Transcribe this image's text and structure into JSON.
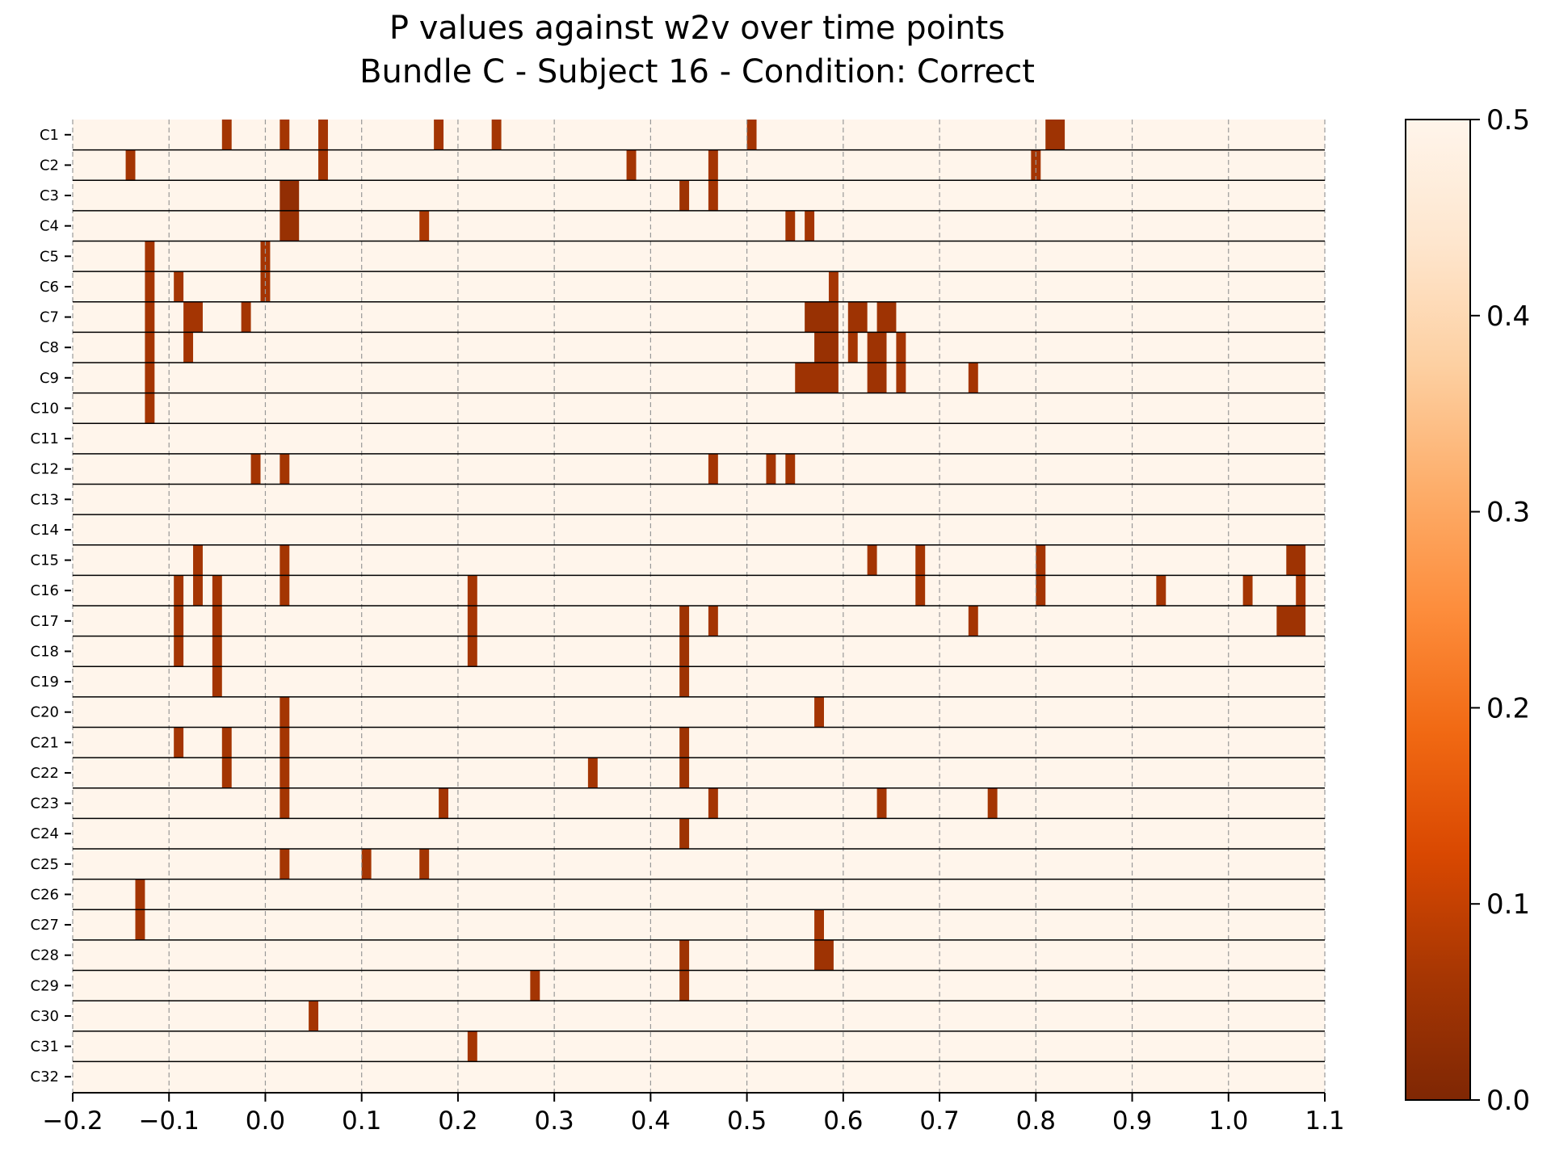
{
  "chart_data": {
    "type": "heatmap",
    "title_line1": "P values against w2v over time points",
    "title_line2": "Bundle C - Subject 16 - Condition: Correct",
    "xlabel": "",
    "ylabel": "",
    "xlim": [
      -0.2,
      1.1
    ],
    "x_ticks": [
      "−0.2",
      "−0.1",
      "0.0",
      "0.1",
      "0.2",
      "0.3",
      "0.4",
      "0.5",
      "0.6",
      "0.7",
      "0.8",
      "0.9",
      "1.0",
      "1.1"
    ],
    "x_tick_values": [
      -0.2,
      -0.1,
      0.0,
      0.1,
      0.2,
      0.3,
      0.4,
      0.5,
      0.6,
      0.7,
      0.8,
      0.9,
      1.0,
      1.1
    ],
    "grid": "vertical dashed lines at x ticks",
    "rows": [
      "C1",
      "C2",
      "C3",
      "C4",
      "C5",
      "C6",
      "C7",
      "C8",
      "C9",
      "C10",
      "C11",
      "C12",
      "C13",
      "C14",
      "C15",
      "C16",
      "C17",
      "C18",
      "C19",
      "C20",
      "C21",
      "C22",
      "C23",
      "C24",
      "C25",
      "C26",
      "C27",
      "C28",
      "C29",
      "C30",
      "C31",
      "C32"
    ],
    "background_p": 0.5,
    "colorbar": {
      "range": [
        0.0,
        0.5
      ],
      "ticks": [
        "0.0",
        "0.1",
        "0.2",
        "0.3",
        "0.4",
        "0.5"
      ],
      "tick_values": [
        0.0,
        0.1,
        0.2,
        0.3,
        0.4,
        0.5
      ],
      "colormap": "Oranges_r",
      "stops": [
        "#7f2704",
        "#a63603",
        "#d94801",
        "#f16913",
        "#fd8d3c",
        "#fdae6b",
        "#fdd0a2",
        "#fee6ce",
        "#fff5eb"
      ]
    },
    "significant_cells": [
      {
        "row": "C1",
        "x0": -0.045,
        "x1": -0.035,
        "p": 0.06
      },
      {
        "row": "C1",
        "x0": 0.015,
        "x1": 0.025,
        "p": 0.06
      },
      {
        "row": "C1",
        "x0": 0.055,
        "x1": 0.065,
        "p": 0.06
      },
      {
        "row": "C1",
        "x0": 0.175,
        "x1": 0.185,
        "p": 0.06
      },
      {
        "row": "C1",
        "x0": 0.235,
        "x1": 0.245,
        "p": 0.06
      },
      {
        "row": "C1",
        "x0": 0.5,
        "x1": 0.51,
        "p": 0.06
      },
      {
        "row": "C1",
        "x0": 0.81,
        "x1": 0.83,
        "p": 0.05
      },
      {
        "row": "C2",
        "x0": -0.145,
        "x1": -0.135,
        "p": 0.06
      },
      {
        "row": "C2",
        "x0": 0.055,
        "x1": 0.065,
        "p": 0.06
      },
      {
        "row": "C2",
        "x0": 0.375,
        "x1": 0.385,
        "p": 0.06
      },
      {
        "row": "C2",
        "x0": 0.46,
        "x1": 0.47,
        "p": 0.06
      },
      {
        "row": "C2",
        "x0": 0.795,
        "x1": 0.805,
        "p": 0.06
      },
      {
        "row": "C3",
        "x0": 0.015,
        "x1": 0.035,
        "p": 0.03
      },
      {
        "row": "C3",
        "x0": 0.43,
        "x1": 0.44,
        "p": 0.05
      },
      {
        "row": "C3",
        "x0": 0.46,
        "x1": 0.47,
        "p": 0.06
      },
      {
        "row": "C4",
        "x0": 0.015,
        "x1": 0.035,
        "p": 0.04
      },
      {
        "row": "C4",
        "x0": 0.16,
        "x1": 0.17,
        "p": 0.07
      },
      {
        "row": "C4",
        "x0": 0.54,
        "x1": 0.55,
        "p": 0.06
      },
      {
        "row": "C4",
        "x0": 0.56,
        "x1": 0.57,
        "p": 0.06
      },
      {
        "row": "C5",
        "x0": -0.125,
        "x1": -0.115,
        "p": 0.06
      },
      {
        "row": "C5",
        "x0": -0.005,
        "x1": 0.005,
        "p": 0.06
      },
      {
        "row": "C6",
        "x0": -0.125,
        "x1": -0.115,
        "p": 0.06
      },
      {
        "row": "C6",
        "x0": -0.095,
        "x1": -0.085,
        "p": 0.06
      },
      {
        "row": "C6",
        "x0": -0.005,
        "x1": 0.005,
        "p": 0.06
      },
      {
        "row": "C6",
        "x0": 0.585,
        "x1": 0.595,
        "p": 0.06
      },
      {
        "row": "C7",
        "x0": -0.125,
        "x1": -0.115,
        "p": 0.06
      },
      {
        "row": "C7",
        "x0": -0.085,
        "x1": -0.065,
        "p": 0.06
      },
      {
        "row": "C7",
        "x0": -0.025,
        "x1": -0.015,
        "p": 0.06
      },
      {
        "row": "C7",
        "x0": 0.56,
        "x1": 0.595,
        "p": 0.04
      },
      {
        "row": "C7",
        "x0": 0.605,
        "x1": 0.625,
        "p": 0.05
      },
      {
        "row": "C7",
        "x0": 0.635,
        "x1": 0.655,
        "p": 0.05
      },
      {
        "row": "C8",
        "x0": -0.125,
        "x1": -0.115,
        "p": 0.06
      },
      {
        "row": "C8",
        "x0": -0.085,
        "x1": -0.075,
        "p": 0.06
      },
      {
        "row": "C8",
        "x0": 0.57,
        "x1": 0.595,
        "p": 0.04
      },
      {
        "row": "C8",
        "x0": 0.605,
        "x1": 0.615,
        "p": 0.06
      },
      {
        "row": "C8",
        "x0": 0.625,
        "x1": 0.645,
        "p": 0.05
      },
      {
        "row": "C8",
        "x0": 0.655,
        "x1": 0.665,
        "p": 0.06
      },
      {
        "row": "C9",
        "x0": -0.125,
        "x1": -0.115,
        "p": 0.06
      },
      {
        "row": "C9",
        "x0": 0.55,
        "x1": 0.595,
        "p": 0.05
      },
      {
        "row": "C9",
        "x0": 0.625,
        "x1": 0.645,
        "p": 0.05
      },
      {
        "row": "C9",
        "x0": 0.655,
        "x1": 0.665,
        "p": 0.06
      },
      {
        "row": "C9",
        "x0": 0.73,
        "x1": 0.74,
        "p": 0.06
      },
      {
        "row": "C10",
        "x0": -0.125,
        "x1": -0.115,
        "p": 0.06
      },
      {
        "row": "C12",
        "x0": -0.015,
        "x1": -0.005,
        "p": 0.06
      },
      {
        "row": "C12",
        "x0": 0.015,
        "x1": 0.025,
        "p": 0.06
      },
      {
        "row": "C12",
        "x0": 0.46,
        "x1": 0.47,
        "p": 0.06
      },
      {
        "row": "C12",
        "x0": 0.52,
        "x1": 0.53,
        "p": 0.06
      },
      {
        "row": "C12",
        "x0": 0.54,
        "x1": 0.55,
        "p": 0.06
      },
      {
        "row": "C15",
        "x0": -0.075,
        "x1": -0.065,
        "p": 0.06
      },
      {
        "row": "C15",
        "x0": 0.015,
        "x1": 0.025,
        "p": 0.06
      },
      {
        "row": "C15",
        "x0": 0.625,
        "x1": 0.635,
        "p": 0.06
      },
      {
        "row": "C15",
        "x0": 0.675,
        "x1": 0.685,
        "p": 0.06
      },
      {
        "row": "C15",
        "x0": 0.8,
        "x1": 0.81,
        "p": 0.06
      },
      {
        "row": "C15",
        "x0": 1.06,
        "x1": 1.08,
        "p": 0.05
      },
      {
        "row": "C16",
        "x0": -0.095,
        "x1": -0.085,
        "p": 0.06
      },
      {
        "row": "C16",
        "x0": -0.075,
        "x1": -0.065,
        "p": 0.06
      },
      {
        "row": "C16",
        "x0": -0.055,
        "x1": -0.045,
        "p": 0.06
      },
      {
        "row": "C16",
        "x0": 0.015,
        "x1": 0.025,
        "p": 0.06
      },
      {
        "row": "C16",
        "x0": 0.21,
        "x1": 0.22,
        "p": 0.06
      },
      {
        "row": "C16",
        "x0": 0.675,
        "x1": 0.685,
        "p": 0.06
      },
      {
        "row": "C16",
        "x0": 0.8,
        "x1": 0.81,
        "p": 0.06
      },
      {
        "row": "C16",
        "x0": 0.925,
        "x1": 0.935,
        "p": 0.06
      },
      {
        "row": "C16",
        "x0": 1.015,
        "x1": 1.025,
        "p": 0.06
      },
      {
        "row": "C16",
        "x0": 1.07,
        "x1": 1.08,
        "p": 0.06
      },
      {
        "row": "C17",
        "x0": -0.095,
        "x1": -0.085,
        "p": 0.06
      },
      {
        "row": "C17",
        "x0": -0.055,
        "x1": -0.045,
        "p": 0.06
      },
      {
        "row": "C17",
        "x0": 0.21,
        "x1": 0.22,
        "p": 0.06
      },
      {
        "row": "C17",
        "x0": 0.43,
        "x1": 0.44,
        "p": 0.05
      },
      {
        "row": "C17",
        "x0": 0.46,
        "x1": 0.47,
        "p": 0.06
      },
      {
        "row": "C17",
        "x0": 0.73,
        "x1": 0.74,
        "p": 0.06
      },
      {
        "row": "C17",
        "x0": 1.05,
        "x1": 1.08,
        "p": 0.05
      },
      {
        "row": "C18",
        "x0": -0.095,
        "x1": -0.085,
        "p": 0.06
      },
      {
        "row": "C18",
        "x0": -0.055,
        "x1": -0.045,
        "p": 0.06
      },
      {
        "row": "C18",
        "x0": 0.21,
        "x1": 0.22,
        "p": 0.06
      },
      {
        "row": "C18",
        "x0": 0.43,
        "x1": 0.44,
        "p": 0.05
      },
      {
        "row": "C19",
        "x0": -0.055,
        "x1": -0.045,
        "p": 0.06
      },
      {
        "row": "C19",
        "x0": 0.43,
        "x1": 0.44,
        "p": 0.05
      },
      {
        "row": "C20",
        "x0": 0.015,
        "x1": 0.025,
        "p": 0.06
      },
      {
        "row": "C20",
        "x0": 0.57,
        "x1": 0.58,
        "p": 0.06
      },
      {
        "row": "C21",
        "x0": -0.095,
        "x1": -0.085,
        "p": 0.06
      },
      {
        "row": "C21",
        "x0": -0.045,
        "x1": -0.035,
        "p": 0.06
      },
      {
        "row": "C21",
        "x0": 0.015,
        "x1": 0.025,
        "p": 0.06
      },
      {
        "row": "C21",
        "x0": 0.43,
        "x1": 0.44,
        "p": 0.05
      },
      {
        "row": "C22",
        "x0": -0.045,
        "x1": -0.035,
        "p": 0.06
      },
      {
        "row": "C22",
        "x0": 0.015,
        "x1": 0.025,
        "p": 0.06
      },
      {
        "row": "C22",
        "x0": 0.335,
        "x1": 0.345,
        "p": 0.06
      },
      {
        "row": "C22",
        "x0": 0.43,
        "x1": 0.44,
        "p": 0.05
      },
      {
        "row": "C23",
        "x0": 0.015,
        "x1": 0.025,
        "p": 0.06
      },
      {
        "row": "C23",
        "x0": 0.18,
        "x1": 0.19,
        "p": 0.06
      },
      {
        "row": "C23",
        "x0": 0.46,
        "x1": 0.47,
        "p": 0.06
      },
      {
        "row": "C23",
        "x0": 0.635,
        "x1": 0.645,
        "p": 0.06
      },
      {
        "row": "C23",
        "x0": 0.75,
        "x1": 0.76,
        "p": 0.06
      },
      {
        "row": "C24",
        "x0": 0.43,
        "x1": 0.44,
        "p": 0.05
      },
      {
        "row": "C25",
        "x0": 0.015,
        "x1": 0.025,
        "p": 0.06
      },
      {
        "row": "C25",
        "x0": 0.1,
        "x1": 0.11,
        "p": 0.06
      },
      {
        "row": "C25",
        "x0": 0.16,
        "x1": 0.17,
        "p": 0.06
      },
      {
        "row": "C26",
        "x0": -0.135,
        "x1": -0.125,
        "p": 0.06
      },
      {
        "row": "C27",
        "x0": -0.135,
        "x1": -0.125,
        "p": 0.06
      },
      {
        "row": "C27",
        "x0": 0.57,
        "x1": 0.58,
        "p": 0.06
      },
      {
        "row": "C28",
        "x0": 0.43,
        "x1": 0.44,
        "p": 0.05
      },
      {
        "row": "C28",
        "x0": 0.57,
        "x1": 0.59,
        "p": 0.05
      },
      {
        "row": "C29",
        "x0": 0.275,
        "x1": 0.285,
        "p": 0.06
      },
      {
        "row": "C29",
        "x0": 0.43,
        "x1": 0.44,
        "p": 0.05
      },
      {
        "row": "C30",
        "x0": 0.045,
        "x1": 0.055,
        "p": 0.06
      },
      {
        "row": "C31",
        "x0": 0.21,
        "x1": 0.22,
        "p": 0.06
      }
    ]
  }
}
